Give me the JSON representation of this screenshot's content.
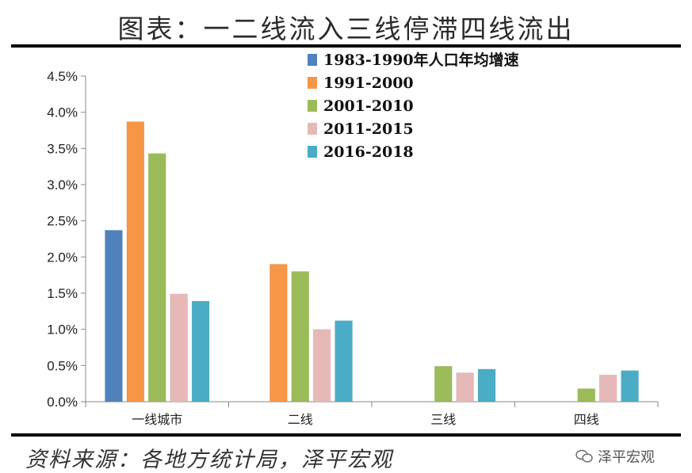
{
  "title": "图表：一二线流入三线停滞四线流出",
  "source": "资料来源：各地方统计局，泽平宏观",
  "watermark": "泽平宏观",
  "chart_data": {
    "type": "bar",
    "categories": [
      "一线城市",
      "二线",
      "三线",
      "四线"
    ],
    "ylim": [
      0,
      4.5
    ],
    "yticks": [
      "0.0%",
      "0.5%",
      "1.0%",
      "1.5%",
      "2.0%",
      "2.5%",
      "3.0%",
      "3.5%",
      "4.0%",
      "4.5%"
    ],
    "legend_position": "top-center",
    "grid": false,
    "series": [
      {
        "name": "1983-1990年人口年均增速",
        "color": "#4f81bd",
        "values": [
          2.37,
          null,
          null,
          null
        ]
      },
      {
        "name": "1991-2000",
        "color": "#f79646",
        "values": [
          3.87,
          1.9,
          null,
          null
        ]
      },
      {
        "name": "2001-2010",
        "color": "#9bbb59",
        "values": [
          3.43,
          1.8,
          0.49,
          0.18
        ]
      },
      {
        "name": "2011-2015",
        "color": "#e6b9b8",
        "values": [
          1.49,
          1.0,
          0.4,
          0.37
        ]
      },
      {
        "name": "2016-2018",
        "color": "#4bacc6",
        "values": [
          1.39,
          1.12,
          0.45,
          0.43
        ]
      }
    ]
  }
}
